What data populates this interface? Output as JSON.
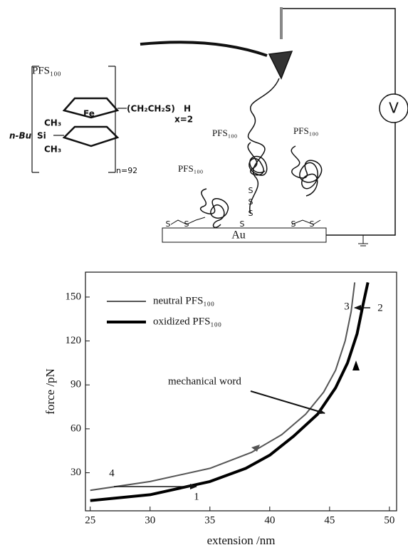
{
  "diagram": {
    "polymer_label": "PFS₁₀₀",
    "structure": {
      "metal": "Fe",
      "methyl_top": "CH₃",
      "methyl_bottom": "CH₃",
      "butyl": "n-Bu",
      "silicon": "Si",
      "end_group": "(CH₂CH₂S)",
      "hydrogen": "H",
      "end_repeat": "x=2",
      "repeat": "n=92"
    },
    "chain_labels": [
      "PFS₁₀₀",
      "PFS₁₀₀",
      "PFS₁₀₀"
    ],
    "substrate": "Au",
    "voltmeter": "V",
    "sulfur": [
      "S",
      "S",
      "S",
      "S",
      "S",
      "S",
      "S",
      "S"
    ]
  },
  "chart_data": {
    "type": "line",
    "xlabel": "extension /nm",
    "ylabel": "force /pN",
    "xlim": [
      24.6,
      50.6
    ],
    "ylim": [
      4,
      167
    ],
    "xticks": [
      25,
      30,
      35,
      40,
      45,
      50
    ],
    "yticks": [
      30,
      60,
      90,
      120,
      150
    ],
    "series": [
      {
        "name": "neutral PFS₁₀₀",
        "color": "#555555",
        "x": [
          25,
          30,
          35,
          38.5,
          41,
          43,
          44.5,
          45.5,
          46.3,
          46.8,
          47.1
        ],
        "values": [
          18,
          24,
          33,
          44,
          56,
          70,
          85,
          100,
          120,
          140,
          160
        ]
      },
      {
        "name": "oxidized PFS₁₀₀",
        "color": "#000000",
        "x": [
          25,
          30,
          35,
          38,
          40,
          42,
          44,
          45.5,
          46.5,
          47.3,
          47.8,
          48.2
        ],
        "values": [
          11,
          15,
          24,
          33,
          42,
          55,
          70,
          88,
          105,
          125,
          145,
          160
        ]
      }
    ],
    "annotations": [
      {
        "text": "mechanical word"
      },
      {
        "text": "1"
      },
      {
        "text": "2"
      },
      {
        "text": "3"
      },
      {
        "text": "4"
      }
    ]
  }
}
